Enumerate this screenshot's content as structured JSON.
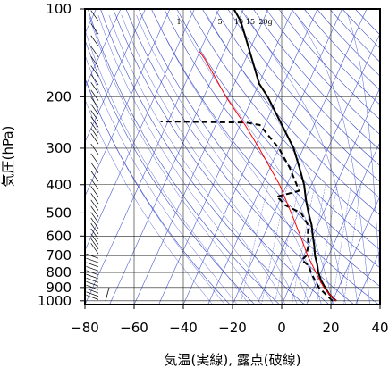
{
  "chart_data": {
    "type": "line",
    "diagram": "skew-T log-P",
    "xlabel": "気温(実線), 露点(破線)",
    "ylabel": "気圧(hPa)",
    "xlim": [
      -80,
      40
    ],
    "ylim": [
      1030,
      100
    ],
    "yscale": "log",
    "x_ticks": [
      -80,
      -60,
      -40,
      -20,
      0,
      20,
      40
    ],
    "x_tick_labels": [
      "−80",
      "−60",
      "−40",
      "−20",
      "0",
      "20",
      "40"
    ],
    "y_ticks": [
      100,
      200,
      300,
      400,
      500,
      600,
      700,
      800,
      900,
      1000
    ],
    "y_tick_labels": [
      "100",
      "200",
      "300",
      "400",
      "500",
      "600",
      "700",
      "800",
      "900",
      "1000"
    ],
    "mixing_ratio_labels": [
      "1",
      "5",
      "10",
      "15",
      "20g"
    ],
    "grid": true,
    "series": [
      {
        "role": "temperature",
        "style": "solid",
        "color": "#000000",
        "points": [
          {
            "p": 1000,
            "t": 21.5
          },
          {
            "p": 950,
            "t": 17.5
          },
          {
            "p": 900,
            "t": 14.5
          },
          {
            "p": 850,
            "t": 11.5
          },
          {
            "p": 800,
            "t": 9
          },
          {
            "p": 750,
            "t": 7
          },
          {
            "p": 700,
            "t": 4.5
          },
          {
            "p": 650,
            "t": 2.5
          },
          {
            "p": 600,
            "t": 0
          },
          {
            "p": 550,
            "t": -2.5
          },
          {
            "p": 500,
            "t": -6
          },
          {
            "p": 450,
            "t": -9.5
          },
          {
            "p": 400,
            "t": -13
          },
          {
            "p": 350,
            "t": -18
          },
          {
            "p": 300,
            "t": -24
          },
          {
            "p": 250,
            "t": -33
          },
          {
            "p": 200,
            "t": -44
          },
          {
            "p": 180,
            "t": -50
          },
          {
            "p": 150,
            "t": -57
          },
          {
            "p": 125,
            "t": -64
          },
          {
            "p": 110,
            "t": -69
          },
          {
            "p": 100,
            "t": -74
          }
        ]
      },
      {
        "role": "dewpoint",
        "style": "dashed",
        "color": "#000000",
        "points": [
          {
            "p": 1000,
            "t": 20
          },
          {
            "p": 950,
            "t": 16
          },
          {
            "p": 900,
            "t": 12
          },
          {
            "p": 850,
            "t": 9
          },
          {
            "p": 800,
            "t": 6
          },
          {
            "p": 760,
            "t": 4
          },
          {
            "p": 725,
            "t": 0
          },
          {
            "p": 700,
            "t": 1
          },
          {
            "p": 650,
            "t": 0
          },
          {
            "p": 600,
            "t": -2
          },
          {
            "p": 550,
            "t": -4
          },
          {
            "p": 500,
            "t": -9
          },
          {
            "p": 470,
            "t": -17
          },
          {
            "p": 450,
            "t": -20
          },
          {
            "p": 440,
            "t": -22
          },
          {
            "p": 420,
            "t": -14
          },
          {
            "p": 400,
            "t": -16
          },
          {
            "p": 350,
            "t": -22
          },
          {
            "p": 300,
            "t": -30
          },
          {
            "p": 250,
            "t": -42
          },
          {
            "p": 245,
            "t": -48
          },
          {
            "p": 243,
            "t": -83
          }
        ]
      },
      {
        "role": "parcel",
        "style": "solid",
        "color": "#ff0000",
        "points": [
          {
            "p": 1000,
            "t": 21.5
          },
          {
            "p": 950,
            "t": 17.5
          },
          {
            "p": 900,
            "t": 14
          },
          {
            "p": 850,
            "t": 11
          },
          {
            "p": 800,
            "t": 8
          },
          {
            "p": 700,
            "t": 1.5
          },
          {
            "p": 600,
            "t": -5
          },
          {
            "p": 500,
            "t": -13
          },
          {
            "p": 400,
            "t": -23
          },
          {
            "p": 300,
            "t": -38
          },
          {
            "p": 250,
            "t": -48
          },
          {
            "p": 200,
            "t": -61
          },
          {
            "p": 150,
            "t": -76
          },
          {
            "p": 140,
            "t": -80
          }
        ]
      }
    ]
  }
}
